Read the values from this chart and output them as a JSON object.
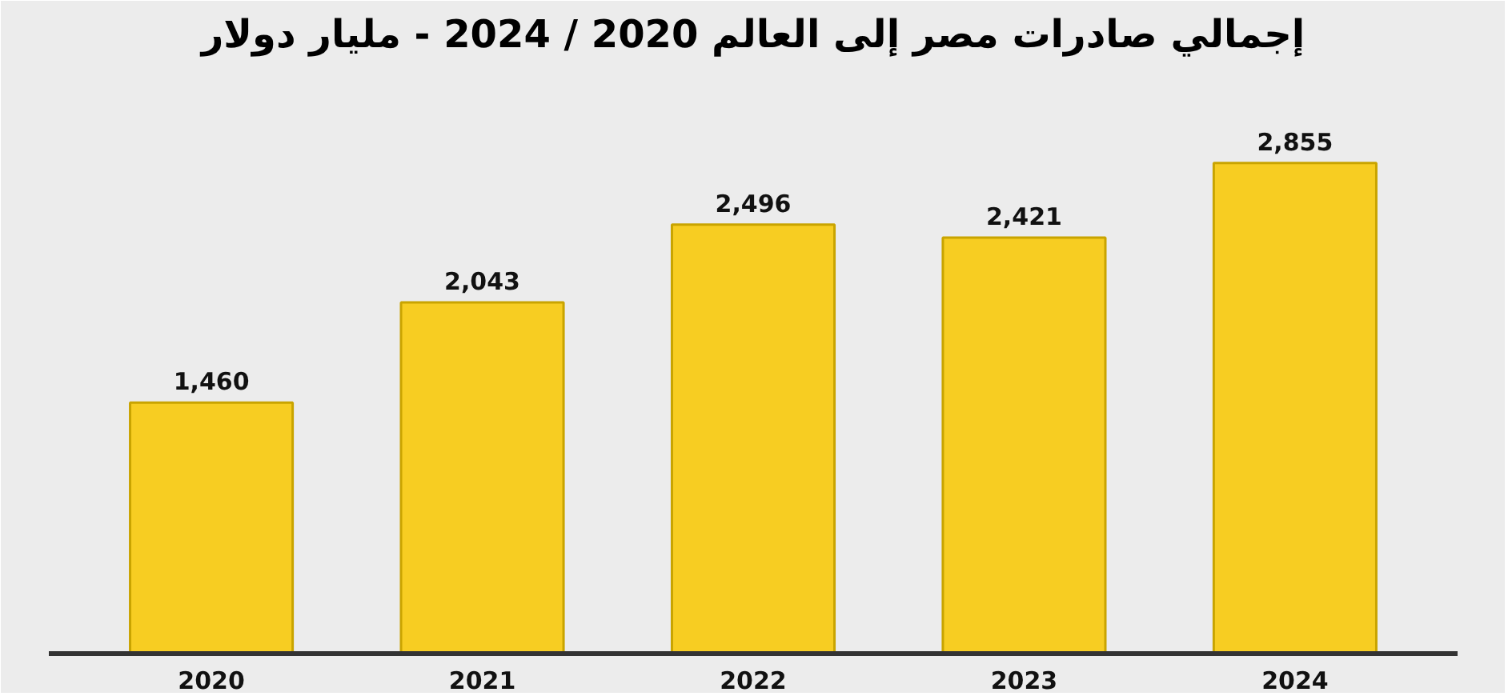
{
  "chart_data": {
    "type": "bar",
    "title": "إجمالي صادرات مصر إلى العالم 2020 / 2024 - مليار دولار",
    "categories": [
      "2020",
      "2021",
      "2022",
      "2023",
      "2024"
    ],
    "values": [
      1460,
      2043,
      2496,
      2421,
      2855
    ],
    "value_labels": [
      "1,460",
      "2,043",
      "2,496",
      "2,421",
      "2,855"
    ],
    "color": "#f7cd22",
    "grid": false
  }
}
